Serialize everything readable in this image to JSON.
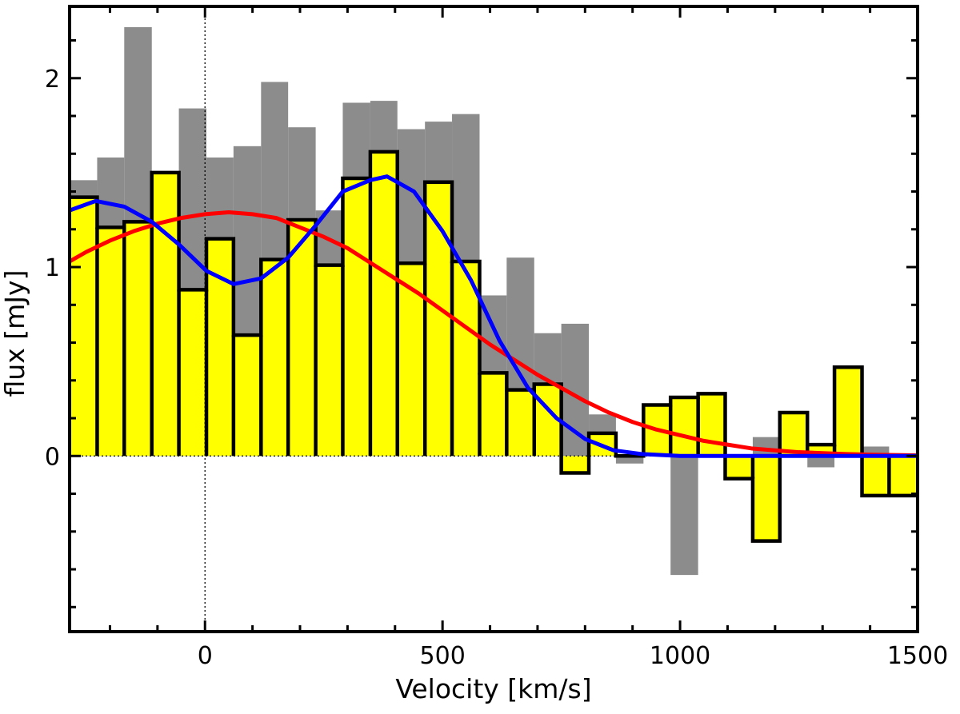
{
  "chart_data": {
    "type": "step",
    "title": "",
    "xlabel": "Velocity [km/s]",
    "ylabel": "flux [mJy]",
    "xlim": [
      -285,
      1500
    ],
    "ylim": [
      -0.93,
      2.38
    ],
    "xticks": [
      0,
      500,
      1000,
      1500
    ],
    "yticks": [
      0,
      1,
      2
    ],
    "xtick_labels": [
      "0",
      "500",
      "1000",
      "1500"
    ],
    "ytick_labels": [
      "0",
      "1",
      "2"
    ],
    "grid": false,
    "colors": {
      "gray_hist": "#8c8c8c",
      "yellow_fill": "#ffff00",
      "step_line": "#000000",
      "red_fit": "#ff0000",
      "blue_fit": "#0000ff"
    },
    "bin_edges": [
      -285,
      -227,
      -170,
      -112,
      -55,
      3,
      60,
      118,
      175,
      233,
      290,
      348,
      405,
      463,
      520,
      578,
      635,
      693,
      750,
      808,
      865,
      923,
      980,
      1038,
      1095,
      1153,
      1210,
      1268,
      1325,
      1383,
      1440,
      1500
    ],
    "series": [
      {
        "name": "gray histogram",
        "style": "filled-bars",
        "values": [
          1.46,
          1.58,
          2.27,
          1.36,
          1.84,
          1.58,
          1.64,
          1.98,
          1.74,
          1.3,
          1.87,
          1.88,
          1.73,
          1.77,
          1.81,
          0.85,
          1.05,
          0.65,
          0.7,
          0.22,
          -0.04,
          0.27,
          -0.63,
          0.06,
          -0.1,
          0.1,
          0.17,
          -0.06,
          0.06,
          0.05,
          0.0
        ]
      },
      {
        "name": "yellow histogram",
        "style": "filled-step",
        "values": [
          1.37,
          1.21,
          1.24,
          1.5,
          0.88,
          1.15,
          0.64,
          1.04,
          1.25,
          1.01,
          1.47,
          1.61,
          1.02,
          1.45,
          1.03,
          0.44,
          0.35,
          0.38,
          -0.09,
          0.12,
          0.0,
          0.27,
          0.31,
          0.33,
          -0.12,
          -0.45,
          0.23,
          0.06,
          0.47,
          -0.21,
          -0.21
        ]
      },
      {
        "name": "red single gaussian fit",
        "style": "line",
        "x": [
          -285,
          -250,
          -200,
          -150,
          -100,
          -50,
          0,
          50,
          100,
          150,
          200,
          250,
          300,
          350,
          400,
          450,
          500,
          550,
          600,
          650,
          700,
          750,
          800,
          850,
          900,
          950,
          1000,
          1050,
          1100,
          1150,
          1200,
          1250,
          1300,
          1350,
          1400,
          1450,
          1500
        ],
        "y": [
          1.03,
          1.08,
          1.14,
          1.19,
          1.23,
          1.26,
          1.28,
          1.29,
          1.28,
          1.26,
          1.21,
          1.16,
          1.1,
          1.02,
          0.94,
          0.86,
          0.77,
          0.68,
          0.59,
          0.51,
          0.43,
          0.36,
          0.29,
          0.23,
          0.18,
          0.14,
          0.11,
          0.08,
          0.06,
          0.04,
          0.03,
          0.02,
          0.015,
          0.01,
          0.007,
          0.005,
          0.003
        ]
      },
      {
        "name": "blue double gaussian fit",
        "style": "line",
        "x": [
          -285,
          -230,
          -170,
          -112,
          -55,
          3,
          60,
          118,
          175,
          233,
          290,
          348,
          383,
          440,
          500,
          560,
          620,
          680,
          740,
          800,
          860,
          920,
          1000,
          1100,
          1200,
          1300,
          1400,
          1500
        ],
        "y": [
          1.3,
          1.35,
          1.32,
          1.24,
          1.12,
          0.98,
          0.91,
          0.94,
          1.05,
          1.22,
          1.4,
          1.46,
          1.48,
          1.4,
          1.19,
          0.93,
          0.61,
          0.36,
          0.2,
          0.09,
          0.03,
          0.01,
          0.0,
          0.0,
          0.0,
          0.0,
          0.0,
          0.0
        ]
      }
    ],
    "reference_lines": [
      {
        "orientation": "vertical",
        "value": 0,
        "style": "dotted"
      },
      {
        "orientation": "horizontal",
        "value": 0,
        "style": "dotted"
      }
    ]
  }
}
